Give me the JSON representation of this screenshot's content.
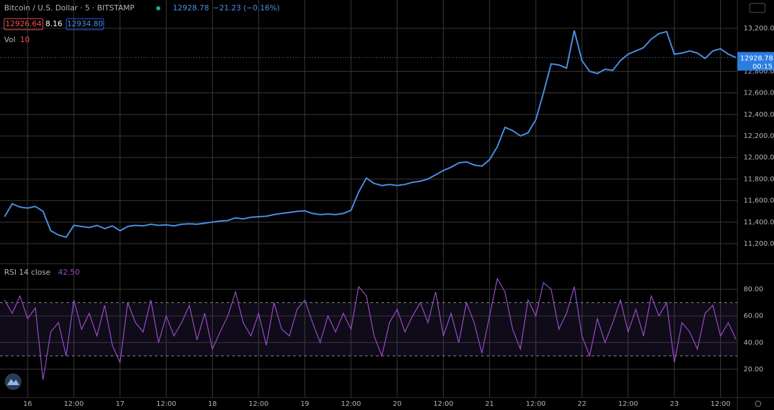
{
  "header": {
    "symbol": "Bitcoin / U.S. Dollar · 5 · BITSTAMP",
    "last": "12928.78",
    "change": "−21.23 (−0.16%)",
    "bid": "12926.64",
    "spread": "8.16",
    "ask": "12934.80",
    "vol_label": "Vol",
    "vol_value": "10",
    "rsi_label": "RSI 14 close",
    "rsi_value": "42.50",
    "countdown": "00:15"
  },
  "chart_data": [
    {
      "type": "line",
      "color": "#4a90e2",
      "categories": [
        null,
        null,
        null,
        "16",
        null,
        null,
        null,
        null,
        null,
        "12:00",
        null,
        null,
        null,
        null,
        null,
        "17",
        null,
        null,
        null,
        null,
        null,
        "12:00",
        null,
        null,
        null,
        null,
        null,
        "18",
        null,
        null,
        null,
        null,
        null,
        "12:00",
        null,
        null,
        null,
        null,
        null,
        "19",
        null,
        null,
        null,
        null,
        null,
        "12:00",
        null,
        null,
        null,
        null,
        null,
        "20",
        null,
        null,
        null,
        null,
        null,
        "12:00",
        null,
        null,
        null,
        null,
        null,
        "21",
        null,
        null,
        null,
        null,
        null,
        "12:00",
        null,
        null,
        null,
        null,
        null,
        "22",
        null,
        null,
        null,
        null,
        null,
        "12:00",
        null,
        null,
        null,
        null,
        null,
        "23",
        null,
        null,
        null,
        null,
        null,
        "12:00",
        null,
        null
      ],
      "values": [
        11450,
        11570,
        11540,
        11530,
        11545,
        11500,
        11320,
        11280,
        11260,
        11370,
        11360,
        11350,
        11370,
        11340,
        11365,
        11320,
        11360,
        11370,
        11365,
        11380,
        11370,
        11375,
        11365,
        11380,
        11385,
        11380,
        11390,
        11400,
        11410,
        11415,
        11440,
        11430,
        11445,
        11450,
        11455,
        11470,
        11480,
        11490,
        11500,
        11505,
        11480,
        11470,
        11475,
        11470,
        11480,
        11510,
        11680,
        11810,
        11760,
        11740,
        11750,
        11740,
        11750,
        11770,
        11780,
        11800,
        11840,
        11880,
        11910,
        11950,
        11960,
        11930,
        11920,
        11980,
        12100,
        12280,
        12250,
        12200,
        12230,
        12350,
        12600,
        12870,
        12860,
        12830,
        13180,
        12900,
        12800,
        12780,
        12820,
        12810,
        12900,
        12960,
        12990,
        13020,
        13100,
        13150,
        13170,
        12960,
        12970,
        12990,
        12970,
        12920,
        12990,
        13010,
        12960,
        12928.78
      ],
      "ylim": [
        11027,
        13463
      ],
      "yticks": [
        {
          "value": 11200,
          "label": "11,200.00"
        },
        {
          "value": 11400,
          "label": "11,400.00"
        },
        {
          "value": 11600,
          "label": "11,600.00"
        },
        {
          "value": 11800,
          "label": "11,800.00"
        },
        {
          "value": 12000,
          "label": "12,000.00"
        },
        {
          "value": 12200,
          "label": "12,200.00"
        },
        {
          "value": 12400,
          "label": "12,400.00"
        },
        {
          "value": 12600,
          "label": "12,600.00"
        },
        {
          "value": 12800,
          "label": "12,800.00"
        },
        {
          "value": 13200,
          "label": "13,200.00"
        }
      ],
      "grid": true
    },
    {
      "type": "line",
      "color": "#9c4dcc",
      "values": [
        72,
        62,
        75,
        58,
        66,
        12,
        48,
        55,
        30,
        72,
        50,
        62,
        45,
        68,
        38,
        25,
        70,
        55,
        48,
        72,
        40,
        60,
        45,
        55,
        68,
        42,
        62,
        35,
        48,
        60,
        78,
        55,
        45,
        62,
        38,
        70,
        50,
        45,
        65,
        72,
        55,
        40,
        60,
        48,
        62,
        50,
        82,
        75,
        45,
        30,
        55,
        65,
        48,
        60,
        70,
        55,
        78,
        45,
        62,
        40,
        70,
        55,
        32,
        60,
        88,
        78,
        50,
        35,
        72,
        60,
        85,
        80,
        50,
        62,
        82,
        45,
        30,
        58,
        40,
        55,
        72,
        48,
        65,
        45,
        75,
        60,
        70,
        25,
        55,
        48,
        35,
        62,
        68,
        45,
        55,
        42.5
      ],
      "ylim": [
        -0.8,
        97.7
      ],
      "yticks": [
        {
          "value": 20,
          "label": "20.00"
        },
        {
          "value": 40,
          "label": "40.00"
        },
        {
          "value": 60,
          "label": "60.00"
        },
        {
          "value": 80,
          "label": "80.00"
        }
      ],
      "bands": [
        30,
        70
      ],
      "grid": true
    }
  ]
}
